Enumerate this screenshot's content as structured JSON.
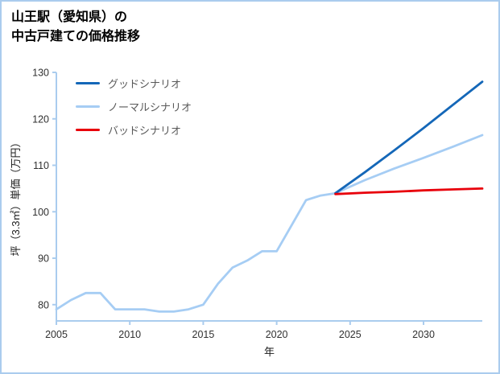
{
  "page": {
    "title_line1": "山王駅（愛知県）の",
    "title_line2": "中古戸建ての価格推移"
  },
  "chart_data": {
    "type": "line",
    "title": "山王駅（愛知県）の中古戸建ての価格推移",
    "xlabel": "年",
    "ylabel": "坪（3.3㎡）単価（万円）",
    "xlim": [
      2005,
      2034
    ],
    "ylim": [
      76.5,
      130
    ],
    "xticks": [
      2005,
      2010,
      2015,
      2020,
      2025,
      2030
    ],
    "yticks": [
      80,
      90,
      100,
      110,
      120,
      130
    ],
    "grid": false,
    "legend_position": "upper left",
    "colors": {
      "axis": "#aaccee",
      "border": "#aaccee",
      "tick_label": "#303030",
      "legend_text": "#595959"
    },
    "series": [
      {
        "name": "グッドシナリオ",
        "color": "#1467b8",
        "width": 2.8,
        "zorder": 3,
        "x": [
          2024,
          2026,
          2028,
          2030,
          2032,
          2034
        ],
        "y": [
          104,
          108.5,
          113.2,
          118,
          123,
          128
        ]
      },
      {
        "name": "ノーマルシナリオ",
        "color": "#a6cdf4",
        "width": 2.8,
        "zorder": 2,
        "x": [
          2005,
          2006,
          2007,
          2008,
          2009,
          2010,
          2011,
          2012,
          2013,
          2014,
          2015,
          2016,
          2017,
          2018,
          2019,
          2020,
          2021,
          2022,
          2023,
          2024,
          2026,
          2028,
          2030,
          2032,
          2034
        ],
        "y": [
          79,
          81,
          82.5,
          82.5,
          79,
          79,
          79,
          78.5,
          78.5,
          79,
          80,
          84.5,
          88,
          89.5,
          91.5,
          91.5,
          97,
          102.5,
          103.5,
          104,
          106.8,
          109.3,
          111.6,
          114,
          116.5
        ]
      },
      {
        "name": "バッドシナリオ",
        "color": "#e8000b",
        "width": 2.8,
        "zorder": 3,
        "x": [
          2024,
          2026,
          2028,
          2030,
          2032,
          2034
        ],
        "y": [
          103.8,
          104.1,
          104.3,
          104.6,
          104.8,
          105
        ]
      }
    ]
  }
}
